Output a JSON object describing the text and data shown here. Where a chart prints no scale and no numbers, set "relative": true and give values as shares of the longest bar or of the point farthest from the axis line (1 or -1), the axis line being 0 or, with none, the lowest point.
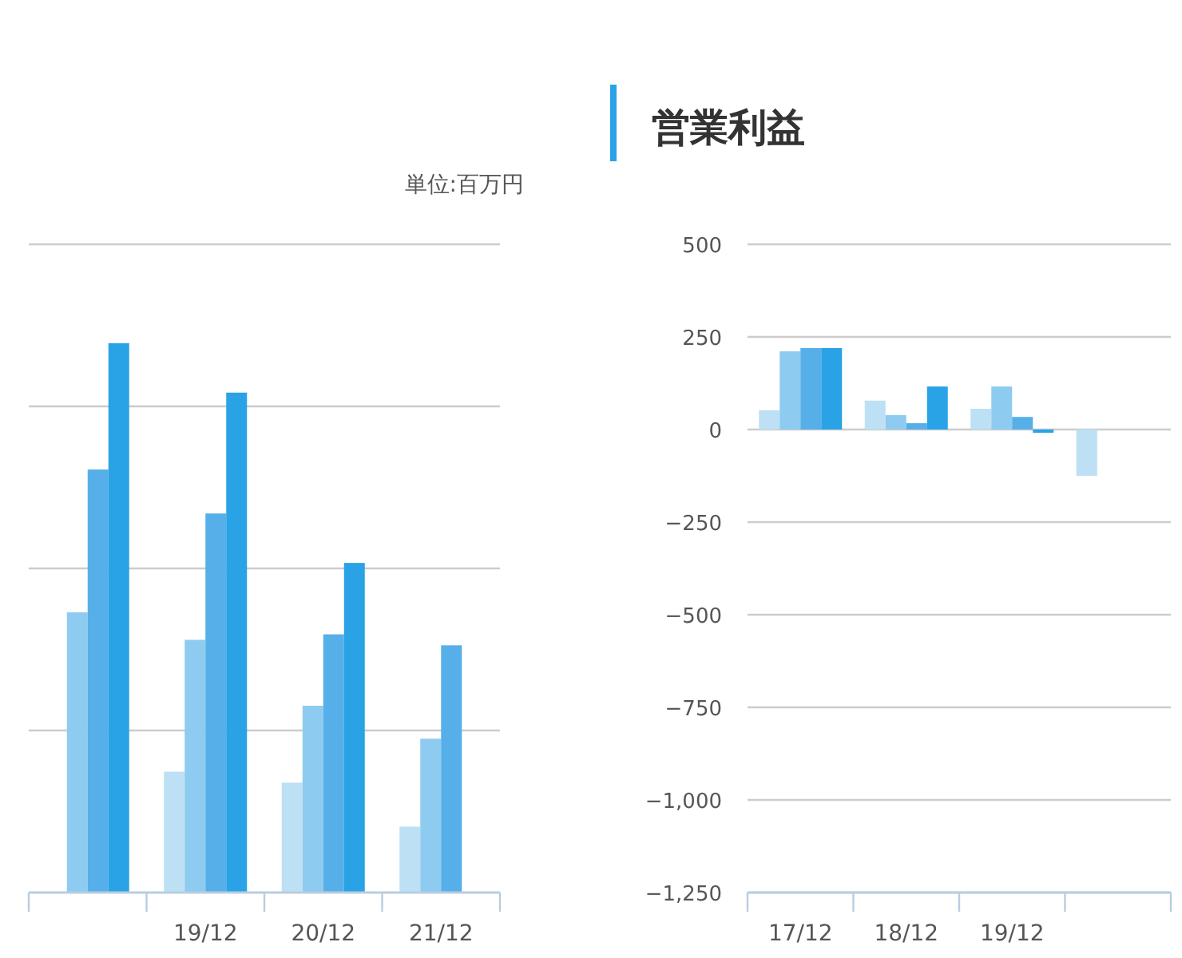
{
  "chart_data": [
    {
      "type": "bar",
      "relative": true,
      "grid": "y",
      "categories": [
        null,
        "19/12",
        "20/12",
        "21/12"
      ],
      "annotations": [
        "単位:百万円"
      ],
      "series": [
        {
          "color": "#bde0f5",
          "values": [
            null,
            0.22,
            0.2,
            0.12
          ]
        },
        {
          "color": "#8ecbf0",
          "values": [
            0.51,
            0.46,
            0.34,
            0.28
          ]
        },
        {
          "color": "#56afe8",
          "values": [
            0.77,
            0.69,
            0.47,
            0.45
          ]
        },
        {
          "color": "#29a3e5",
          "values": [
            1,
            0.91,
            0.6,
            null
          ]
        }
      ]
    },
    {
      "type": "bar",
      "title": "営業利益",
      "grid": "y",
      "categories": [
        "17/12",
        "18/12",
        "19/12",
        null
      ],
      "ylim": [
        -1250,
        500
      ],
      "yticks": [
        {
          "value": 500,
          "label": "500"
        },
        {
          "value": 250,
          "label": "250"
        },
        {
          "value": 0,
          "label": "0"
        },
        {
          "value": -250,
          "label": "−250"
        },
        {
          "value": -500,
          "label": "−500"
        },
        {
          "value": -750,
          "label": "−750"
        },
        {
          "value": -1000,
          "label": "−1,000"
        },
        {
          "value": -1250,
          "label": "−1,250"
        }
      ],
      "series": [
        {
          "color": "#bde0f5",
          "values": [
            52,
            78,
            56,
            -125
          ]
        },
        {
          "color": "#8ecbf0",
          "values": [
            211,
            39,
            116,
            null
          ]
        },
        {
          "color": "#56afe8",
          "values": [
            220,
            17,
            34,
            null
          ]
        },
        {
          "color": "#29a3e5",
          "values": [
            220,
            116,
            -9,
            null
          ]
        }
      ]
    }
  ]
}
